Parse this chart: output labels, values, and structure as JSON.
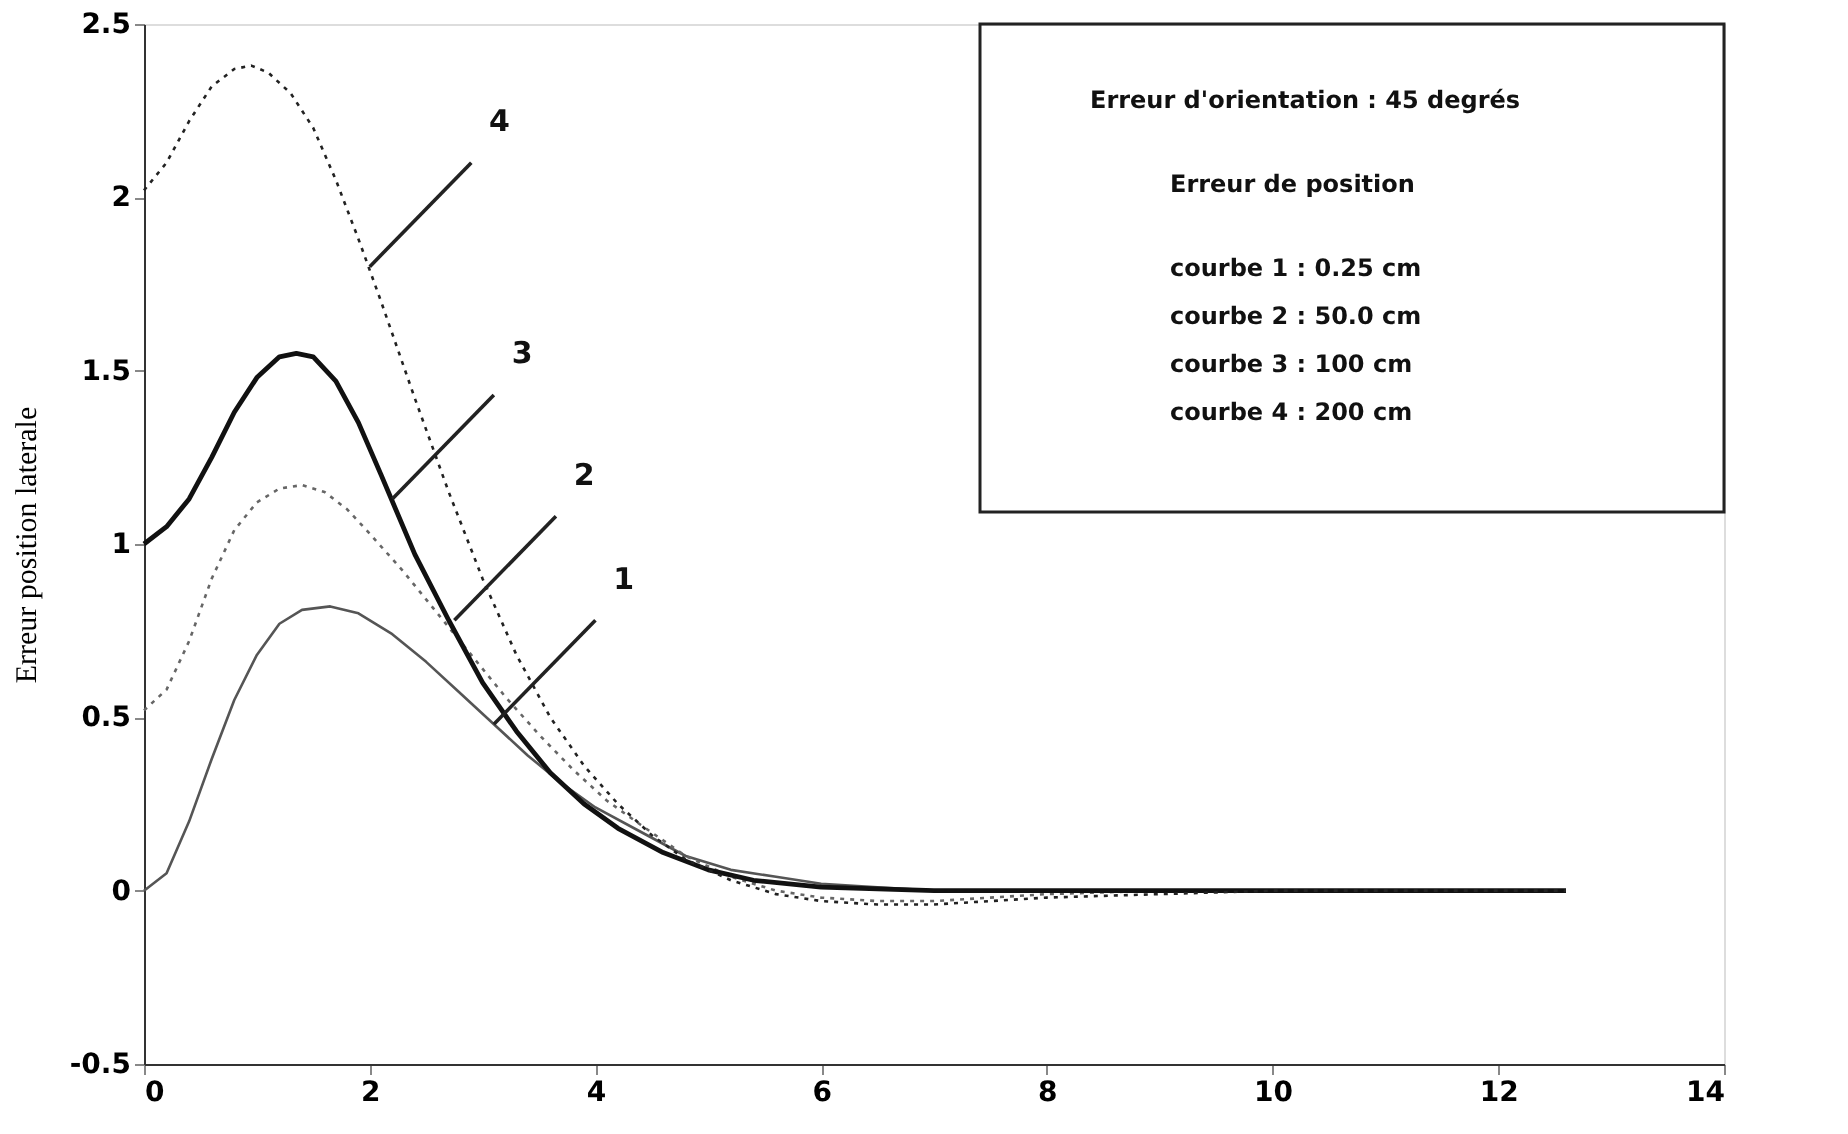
{
  "chart_data": {
    "type": "line",
    "ylabel": "Erreur position laterale",
    "xlim": [
      0,
      14
    ],
    "xticks": [
      0,
      2,
      4,
      6,
      8,
      10,
      12,
      14
    ],
    "ylim": [
      -0.5,
      2.5
    ],
    "yticks": [
      -0.5,
      0,
      0.5,
      1,
      1.5,
      2,
      2.5
    ],
    "grid": false,
    "marker": "none",
    "series": [
      {
        "color": "#555555",
        "line_style": "solid",
        "x": [
          0,
          0.2,
          0.4,
          0.6,
          0.8,
          1.0,
          1.2,
          1.4,
          1.65,
          1.9,
          2.2,
          2.5,
          2.8,
          3.1,
          3.4,
          3.7,
          4.0,
          4.4,
          4.8,
          5.2,
          5.6,
          6,
          6.5,
          7,
          8,
          9,
          10,
          11,
          12,
          12.6
        ],
        "values": [
          0,
          0.05,
          0.2,
          0.38,
          0.55,
          0.68,
          0.77,
          0.81,
          0.82,
          0.8,
          0.74,
          0.66,
          0.57,
          0.48,
          0.39,
          0.31,
          0.24,
          0.17,
          0.1,
          0.06,
          0.04,
          0.02,
          0.01,
          0,
          0,
          0,
          0,
          0,
          0,
          0
        ]
      },
      {
        "color": "#666666",
        "line_style": "dotted",
        "x": [
          0,
          0.2,
          0.4,
          0.6,
          0.8,
          1.0,
          1.2,
          1.4,
          1.6,
          1.8,
          2.0,
          2.3,
          2.6,
          2.9,
          3.2,
          3.5,
          3.8,
          4.1,
          4.4,
          4.8,
          5.2,
          5.6,
          6,
          6.5,
          7,
          7.5,
          8,
          9,
          10,
          11,
          12,
          12.6
        ],
        "values": [
          0.52,
          0.58,
          0.72,
          0.9,
          1.04,
          1.12,
          1.16,
          1.17,
          1.15,
          1.1,
          1.03,
          0.92,
          0.8,
          0.68,
          0.56,
          0.45,
          0.35,
          0.26,
          0.19,
          0.1,
          0.04,
          0.0,
          -0.02,
          -0.03,
          -0.03,
          -0.02,
          -0.01,
          0,
          0,
          0,
          0,
          0
        ]
      },
      {
        "color": "#111111",
        "line_style": "solid",
        "x": [
          0,
          0.2,
          0.4,
          0.6,
          0.8,
          1.0,
          1.2,
          1.35,
          1.5,
          1.7,
          1.9,
          2.1,
          2.4,
          2.7,
          3.0,
          3.3,
          3.6,
          3.9,
          4.2,
          4.6,
          5.0,
          5.4,
          6,
          7,
          8,
          9,
          10,
          11,
          12,
          12.6
        ],
        "values": [
          1.0,
          1.05,
          1.13,
          1.25,
          1.38,
          1.48,
          1.54,
          1.55,
          1.54,
          1.47,
          1.35,
          1.2,
          0.97,
          0.78,
          0.6,
          0.46,
          0.34,
          0.25,
          0.18,
          0.11,
          0.06,
          0.03,
          0.01,
          0,
          0,
          0,
          0,
          0,
          0,
          0
        ]
      },
      {
        "color": "#222222",
        "line_style": "dotted",
        "x": [
          0,
          0.2,
          0.4,
          0.6,
          0.8,
          0.95,
          1.1,
          1.3,
          1.5,
          1.7,
          1.9,
          2.1,
          2.4,
          2.7,
          3.0,
          3.3,
          3.6,
          3.9,
          4.2,
          4.5,
          4.8,
          5.2,
          5.6,
          6,
          6.5,
          7,
          7.5,
          8,
          9,
          10,
          11,
          12,
          12.6
        ],
        "values": [
          2.02,
          2.1,
          2.22,
          2.32,
          2.37,
          2.38,
          2.36,
          2.3,
          2.2,
          2.05,
          1.88,
          1.7,
          1.42,
          1.15,
          0.9,
          0.68,
          0.5,
          0.36,
          0.25,
          0.16,
          0.09,
          0.03,
          -0.01,
          -0.03,
          -0.04,
          -0.04,
          -0.03,
          -0.02,
          -0.01,
          0,
          0,
          0,
          0
        ]
      }
    ],
    "annotations": [
      {
        "text": "1",
        "x": 3.1,
        "y": 0.48
      },
      {
        "text": "2",
        "x": 2.75,
        "y": 0.78
      },
      {
        "text": "3",
        "x": 2.2,
        "y": 1.13
      },
      {
        "text": "4",
        "x": 2.0,
        "y": 1.8
      },
      "Erreur d'orientation : 45 degrés",
      "Erreur de position",
      "courbe 1 : 0.25 cm",
      "courbe 2 : 50.0 cm",
      "courbe 3 : 100  cm",
      "courbe 4 : 200  cm"
    ]
  }
}
